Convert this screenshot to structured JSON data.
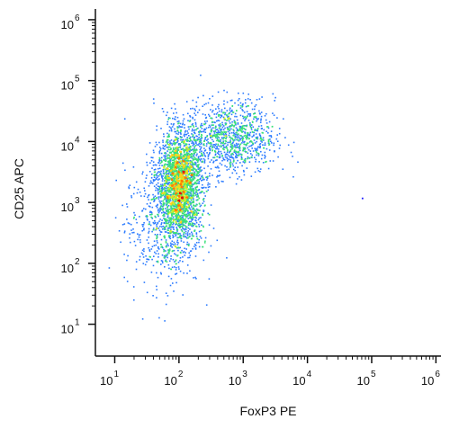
{
  "chart_data": {
    "type": "scatter",
    "subtype": "flow-cytometry-density-dot-plot",
    "xlabel": "FoxP3 PE",
    "ylabel": "CD25 APC",
    "x_scale": "log",
    "y_scale": "log",
    "xlim": [
      5,
      1200000
    ],
    "ylim": [
      3,
      1500000
    ],
    "x_ticks": [
      {
        "base": "10",
        "exp": "1"
      },
      {
        "base": "10",
        "exp": "2"
      },
      {
        "base": "10",
        "exp": "3"
      },
      {
        "base": "10",
        "exp": "4"
      },
      {
        "base": "10",
        "exp": "5"
      },
      {
        "base": "10",
        "exp": "6"
      }
    ],
    "y_ticks": [
      {
        "base": "10",
        "exp": "1"
      },
      {
        "base": "10",
        "exp": "2"
      },
      {
        "base": "10",
        "exp": "3"
      },
      {
        "base": "10",
        "exp": "4"
      },
      {
        "base": "10",
        "exp": "5"
      },
      {
        "base": "10",
        "exp": "6"
      }
    ],
    "grid": false,
    "legend": "none",
    "density_colormap": [
      "#1a1aff",
      "#2b7bff",
      "#22c8e0",
      "#3be07a",
      "#c8f02a",
      "#ffd21a",
      "#ff7a00",
      "#e01010"
    ],
    "populations": [
      {
        "center_x": 100,
        "center_y": 2000,
        "spread_x_decades": 0.17,
        "spread_y_decades": 0.42,
        "share": 0.62
      },
      {
        "center_x": 600,
        "center_y": 12000,
        "spread_x_decades": 0.35,
        "spread_y_decades": 0.3,
        "share": 0.25
      },
      {
        "center_x": 55,
        "center_y": 400,
        "spread_x_decades": 0.3,
        "spread_y_decades": 0.5,
        "share": 0.13
      }
    ],
    "outliers": [
      {
        "x": 70000,
        "y": 1200
      }
    ]
  }
}
